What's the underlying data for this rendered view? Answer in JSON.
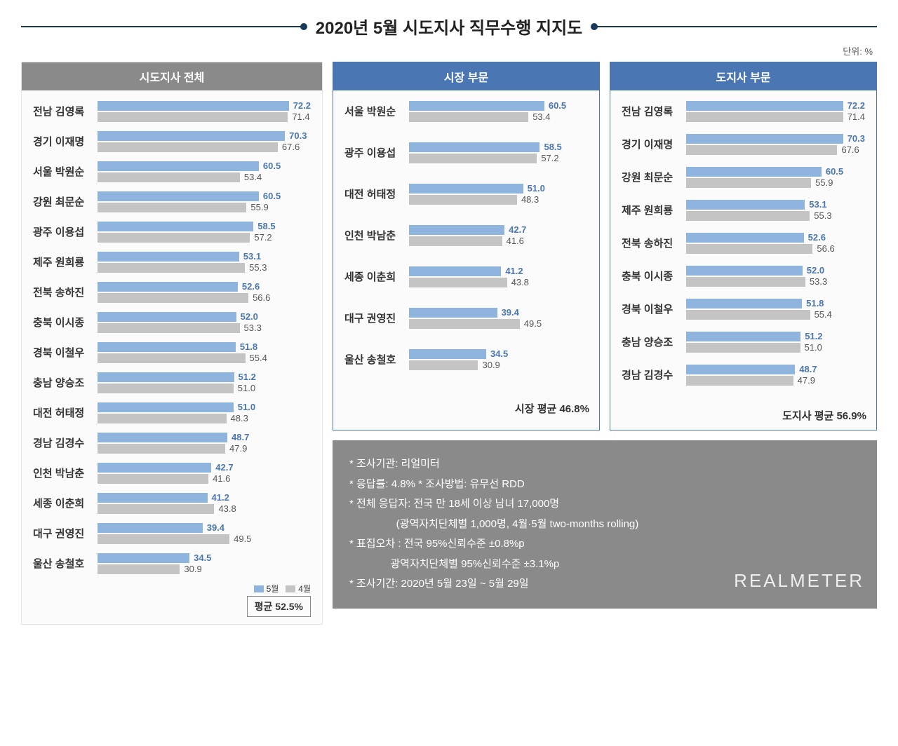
{
  "title": "2020년 5월 시도지사 직무수행 지지도",
  "unit": "단위: %",
  "colors": {
    "may": "#8fb4dd",
    "apr": "#c4c4c4",
    "header_gray": "#8a8a8a",
    "header_blue": "#4a77b4",
    "border_blue": "#4a77b4",
    "panel_bg": "#fbfbfb",
    "title_line": "#1a3a5c"
  },
  "legend": {
    "may": "5월",
    "apr": "4월"
  },
  "max": 80,
  "panels": {
    "all": {
      "header": "시도지사 전체",
      "avg_label": "평균 52.5%",
      "items": [
        {
          "name": "전남 김영록",
          "may": 72.2,
          "apr": 71.4
        },
        {
          "name": "경기 이재명",
          "may": 70.3,
          "apr": 67.6
        },
        {
          "name": "서울 박원순",
          "may": 60.5,
          "apr": 53.4
        },
        {
          "name": "강원 최문순",
          "may": 60.5,
          "apr": 55.9
        },
        {
          "name": "광주 이용섭",
          "may": 58.5,
          "apr": 57.2
        },
        {
          "name": "제주 원희룡",
          "may": 53.1,
          "apr": 55.3
        },
        {
          "name": "전북 송하진",
          "may": 52.6,
          "apr": 56.6
        },
        {
          "name": "충북 이시종",
          "may": 52.0,
          "apr": 53.3
        },
        {
          "name": "경북 이철우",
          "may": 51.8,
          "apr": 55.4
        },
        {
          "name": "충남 양승조",
          "may": 51.2,
          "apr": 51.0
        },
        {
          "name": "대전 허태정",
          "may": 51.0,
          "apr": 48.3
        },
        {
          "name": "경남 김경수",
          "may": 48.7,
          "apr": 47.9
        },
        {
          "name": "인천 박남춘",
          "may": 42.7,
          "apr": 41.6
        },
        {
          "name": "세종 이춘희",
          "may": 41.2,
          "apr": 43.8
        },
        {
          "name": "대구 권영진",
          "may": 39.4,
          "apr": 49.5
        },
        {
          "name": "울산 송철호",
          "may": 34.5,
          "apr": 30.9
        }
      ]
    },
    "mayor": {
      "header": "시장 부문",
      "avg_label": "시장 평균 46.8%",
      "items": [
        {
          "name": "서울 박원순",
          "may": 60.5,
          "apr": 53.4
        },
        {
          "name": "광주 이용섭",
          "may": 58.5,
          "apr": 57.2
        },
        {
          "name": "대전 허태정",
          "may": 51.0,
          "apr": 48.3
        },
        {
          "name": "인천 박남춘",
          "may": 42.7,
          "apr": 41.6
        },
        {
          "name": "세종 이춘희",
          "may": 41.2,
          "apr": 43.8
        },
        {
          "name": "대구 권영진",
          "may": 39.4,
          "apr": 49.5
        },
        {
          "name": "울산 송철호",
          "may": 34.5,
          "apr": 30.9
        }
      ]
    },
    "governor": {
      "header": "도지사 부문",
      "avg_label": "도지사 평균 56.9%",
      "items": [
        {
          "name": "전남 김영록",
          "may": 72.2,
          "apr": 71.4
        },
        {
          "name": "경기 이재명",
          "may": 70.3,
          "apr": 67.6
        },
        {
          "name": "강원 최문순",
          "may": 60.5,
          "apr": 55.9
        },
        {
          "name": "제주 원희룡",
          "may": 53.1,
          "apr": 55.3
        },
        {
          "name": "전북 송하진",
          "may": 52.6,
          "apr": 56.6
        },
        {
          "name": "충북 이시종",
          "may": 52.0,
          "apr": 53.3
        },
        {
          "name": "경북 이철우",
          "may": 51.8,
          "apr": 55.4
        },
        {
          "name": "충남 양승조",
          "may": 51.2,
          "apr": 51.0
        },
        {
          "name": "경남 김경수",
          "may": 48.7,
          "apr": 47.9
        }
      ]
    }
  },
  "info": {
    "lines": [
      "* 조사기관: 리얼미터",
      "* 응답률: 4.8% * 조사방법: 유무선 RDD",
      "* 전체 응답자: 전국 만 18세 이상 남녀 17,000명",
      "                (광역자치단체별 1,000명, 4월·5월 two-months rolling)",
      "* 표집오차 : 전국 95%신뢰수준 ±0.8%p",
      "              광역자치단체별 95%신뢰수준 ±3.1%p",
      "* 조사기간: 2020년 5월 23일 ~ 5월 29일"
    ],
    "brand": "REALMETER"
  }
}
